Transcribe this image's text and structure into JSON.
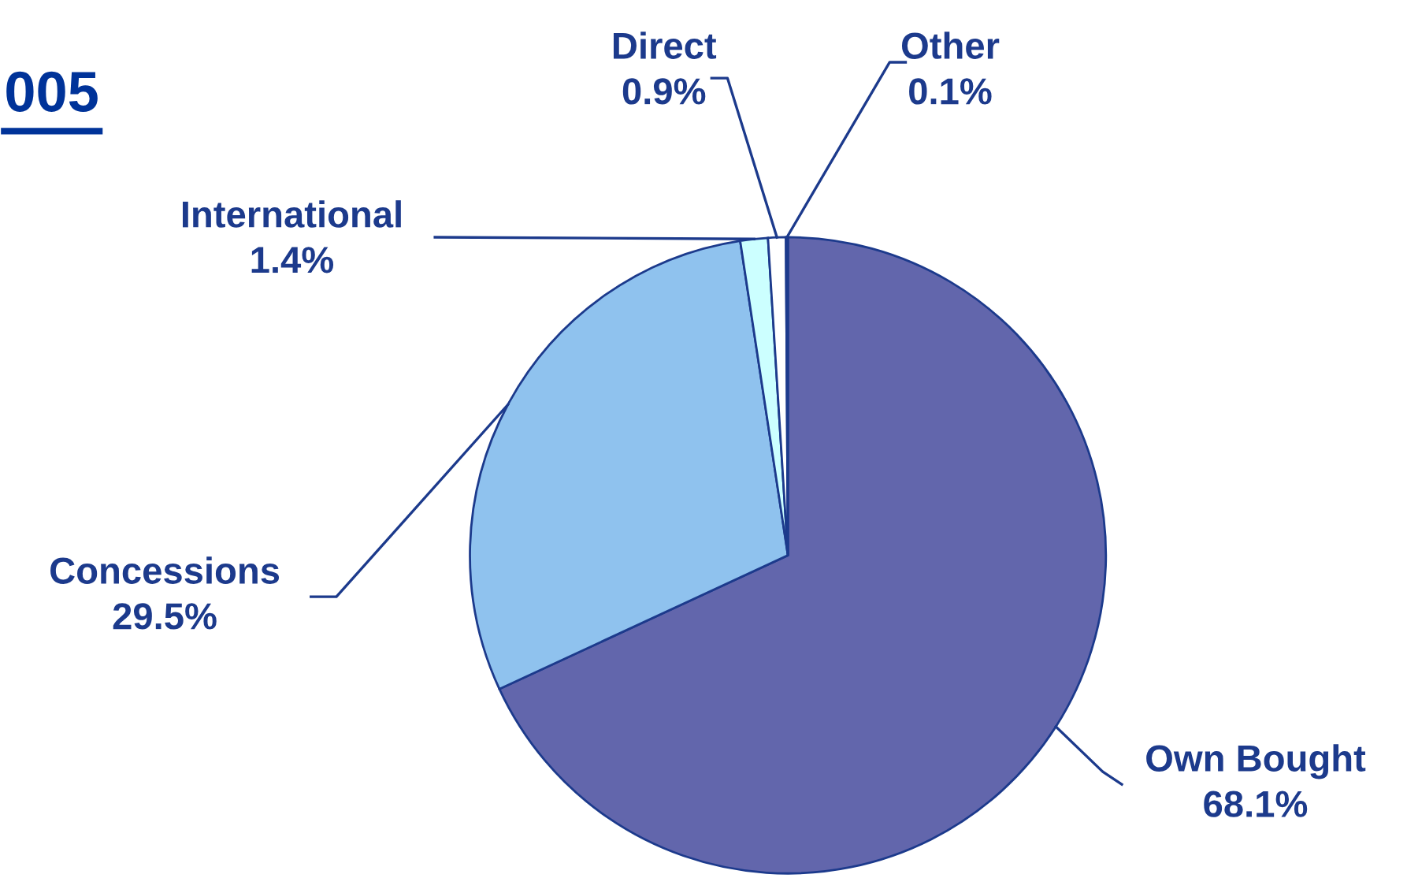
{
  "chart_data": {
    "type": "pie",
    "title": "005",
    "categories": [
      "Own Bought",
      "Concessions",
      "International",
      "Direct",
      "Other"
    ],
    "values": [
      68.1,
      29.5,
      1.4,
      0.9,
      0.1
    ],
    "colors": [
      "#6266ac",
      "#8fc2ee",
      "#ccffff",
      "#ffffff",
      "#e8eeff"
    ],
    "value_labels": [
      "68.1%",
      "29.5%",
      "1.4%",
      "0.9%",
      "0.1%"
    ]
  }
}
